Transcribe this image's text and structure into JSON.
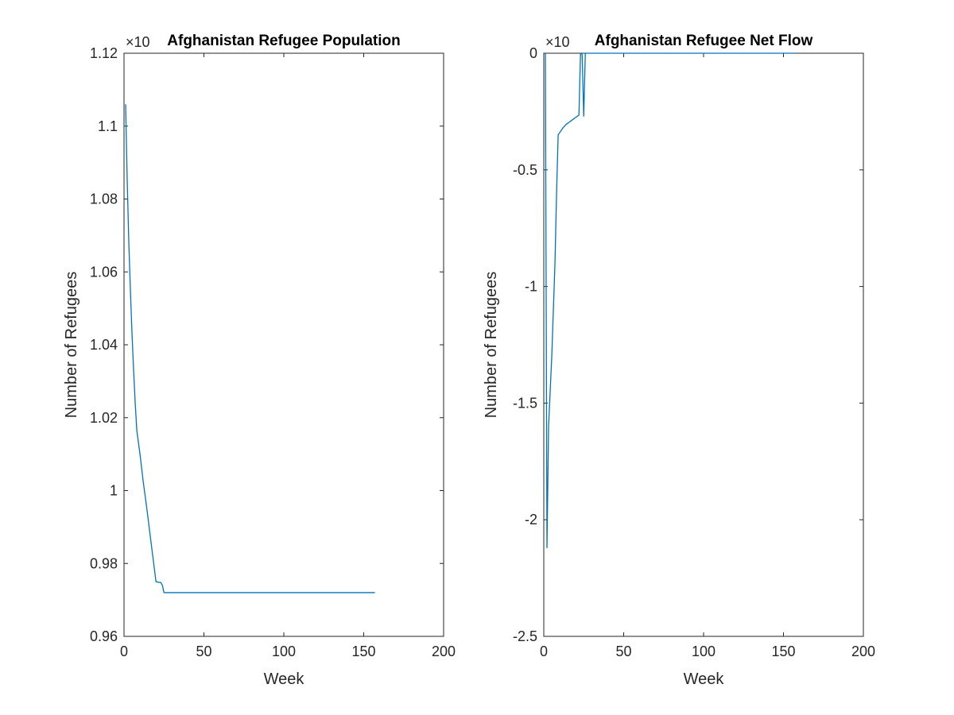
{
  "chart_data": [
    {
      "type": "line",
      "title": "Afghanistan Refugee Population",
      "xlabel": "Week",
      "ylabel": "Number of Refugees",
      "exponent_label": "×10",
      "xlim": [
        0,
        200
      ],
      "ylim": [
        0.96,
        1.12
      ],
      "xticks": [
        0,
        50,
        100,
        150,
        200
      ],
      "xtick_labels": [
        "0",
        "50",
        "100",
        "150",
        "200"
      ],
      "yticks": [
        0.96,
        0.98,
        1.0,
        1.02,
        1.04,
        1.06,
        1.08,
        1.1,
        1.12
      ],
      "ytick_labels": [
        "0.96",
        "0.98",
        "1",
        "1.02",
        "1.04",
        "1.06",
        "1.08",
        "1.1",
        "1.12"
      ],
      "grid": false,
      "color": "#0072BD",
      "series": [
        {
          "x": [
            1,
            2,
            3,
            4,
            5,
            6,
            7,
            8,
            10,
            12,
            14,
            16,
            18,
            20,
            22,
            23,
            24,
            25,
            26,
            157
          ],
          "y": [
            1.106,
            1.085,
            1.068,
            1.055,
            1.043,
            1.033,
            1.024,
            1.0165,
            1.01,
            1.0025,
            0.996,
            0.989,
            0.982,
            0.975,
            0.9748,
            0.9748,
            0.974,
            0.972,
            0.972,
            0.972
          ]
        }
      ]
    },
    {
      "type": "line",
      "title": "Afghanistan Refugee Net Flow",
      "xlabel": "Week",
      "ylabel": "Number of Refugees",
      "exponent_label": "×10",
      "xlim": [
        0,
        200
      ],
      "ylim": [
        -2.5,
        0
      ],
      "xticks": [
        0,
        50,
        100,
        150,
        200
      ],
      "xtick_labels": [
        "0",
        "50",
        "100",
        "150",
        "200"
      ],
      "yticks": [
        -2.5,
        -2,
        -1.5,
        -1,
        -0.5,
        0
      ],
      "ytick_labels": [
        "-2.5",
        "-2",
        "-1.5",
        "-1",
        "-0.5",
        "0"
      ],
      "grid": false,
      "color": "#0072BD",
      "series": [
        {
          "x": [
            1,
            2,
            3,
            4,
            5,
            6,
            7,
            8,
            9,
            10,
            12,
            14,
            16,
            18,
            20,
            22,
            23,
            24,
            25,
            26,
            157
          ],
          "y": [
            0,
            -2.12,
            -1.6,
            -1.45,
            -1.3,
            -1.1,
            -0.9,
            -0.6,
            -0.35,
            -0.34,
            -0.32,
            -0.305,
            -0.295,
            -0.285,
            -0.275,
            -0.265,
            0,
            -0.005,
            -0.27,
            0,
            0
          ]
        }
      ]
    }
  ]
}
